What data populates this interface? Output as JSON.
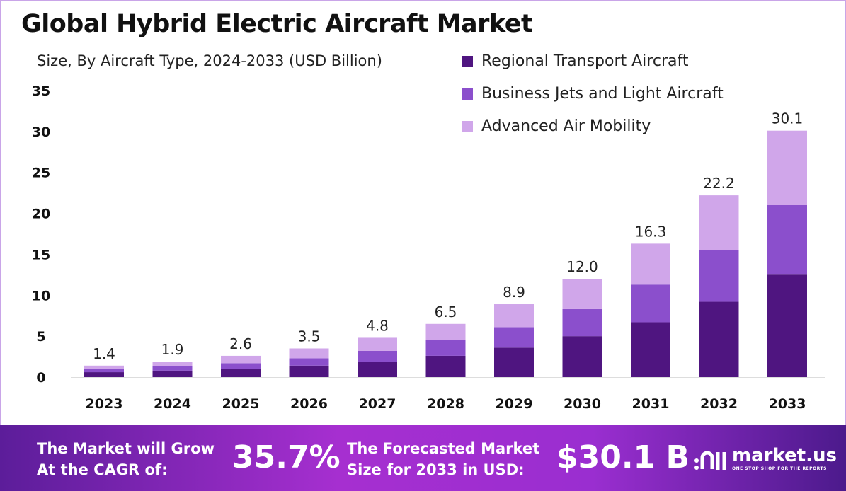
{
  "chart_data": {
    "type": "bar",
    "stacked": true,
    "title": "Global Hybrid Electric Aircraft Market",
    "subtitle": "Size, By Aircraft Type, 2024-2033 (USD Billion)",
    "xlabel": "",
    "ylabel": "",
    "ylim": [
      0,
      35
    ],
    "yticks": [
      0,
      5,
      10,
      15,
      20,
      25,
      30,
      35
    ],
    "grid": false,
    "legend_position": "top-right",
    "categories": [
      "2023",
      "2024",
      "2025",
      "2026",
      "2027",
      "2028",
      "2029",
      "2030",
      "2031",
      "2032",
      "2033"
    ],
    "series": [
      {
        "name": "Regional Transport Aircraft",
        "color": "#4f1580",
        "values": [
          0.6,
          0.8,
          1.0,
          1.4,
          1.9,
          2.6,
          3.6,
          5.0,
          6.7,
          9.2,
          12.6
        ]
      },
      {
        "name": "Business Jets and Light Aircraft",
        "color": "#8b4fcc",
        "values": [
          0.4,
          0.5,
          0.7,
          0.9,
          1.3,
          1.9,
          2.5,
          3.3,
          4.6,
          6.3,
          8.4
        ]
      },
      {
        "name": "Advanced Air Mobility",
        "color": "#d0a6ea",
        "values": [
          0.4,
          0.6,
          0.9,
          1.2,
          1.6,
          2.0,
          2.8,
          3.7,
          5.0,
          6.7,
          9.1
        ]
      }
    ],
    "totals": [
      "1.4",
      "1.9",
      "2.6",
      "3.5",
      "4.8",
      "6.5",
      "8.9",
      "12.0",
      "16.3",
      "22.2",
      "30.1"
    ]
  },
  "footer": {
    "cagr_label_1": "The Market will Grow",
    "cagr_label_2": "At the CAGR of:",
    "cagr_value": "35.7%",
    "forecast_label_1": "The Forecasted Market",
    "forecast_label_2": "Size for 2033 in USD:",
    "forecast_value": "$30.1 B",
    "logo_name": "market.us",
    "logo_tagline": "ONE STOP SHOP FOR THE REPORTS"
  }
}
